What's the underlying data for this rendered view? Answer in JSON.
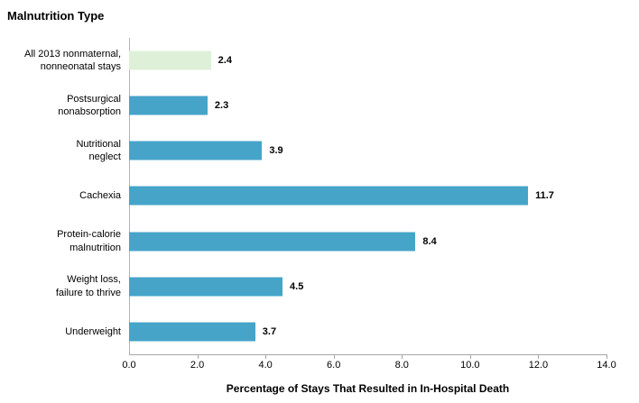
{
  "title": "Malnutrition Type",
  "colors": {
    "bar": "#46a4c8",
    "highlight_bar": "#dff0d8",
    "axis_line": "#a6a6a6",
    "text": "#000000"
  },
  "xaxis": {
    "title": "Percentage of Stays That Resulted in In-Hospital Death",
    "tick_labels": [
      "0.0",
      "2.0",
      "4.0",
      "6.0",
      "8.0",
      "10.0",
      "12.0",
      "14.0"
    ],
    "min": 0,
    "max": 14
  },
  "chart_data": {
    "type": "bar",
    "orientation": "horizontal",
    "title": "Malnutrition Type",
    "xlabel": "Percentage of Stays That Resulted in In-Hospital Death",
    "xlim": [
      0,
      14
    ],
    "grid": false,
    "legend": false,
    "categories": [
      "All 2013 nonmaternal, nonneonatal stays",
      "Postsurgical nonabsorption",
      "Nutritional neglect",
      "Cachexia",
      "Protein-calorie malnutrition",
      "Weight loss, failure to thrive",
      "Underweight"
    ],
    "values": [
      2.4,
      2.3,
      3.9,
      11.7,
      8.4,
      4.5,
      3.7
    ],
    "rows": [
      {
        "lines": [
          "All 2013 nonmaternal,",
          "nonneonatal stays"
        ],
        "value": 2.4,
        "value_label": "2.4",
        "highlight": true
      },
      {
        "lines": [
          "Postsurgical",
          "nonabsorption"
        ],
        "value": 2.3,
        "value_label": "2.3",
        "highlight": false
      },
      {
        "lines": [
          "Nutritional",
          "neglect"
        ],
        "value": 3.9,
        "value_label": "3.9",
        "highlight": false
      },
      {
        "lines": [
          "Cachexia"
        ],
        "value": 11.7,
        "value_label": "11.7",
        "highlight": false
      },
      {
        "lines": [
          "Protein-calorie",
          "malnutrition"
        ],
        "value": 8.4,
        "value_label": "8.4",
        "highlight": false
      },
      {
        "lines": [
          "Weight loss,",
          "failure to thrive"
        ],
        "value": 4.5,
        "value_label": "4.5",
        "highlight": false
      },
      {
        "lines": [
          "Underweight"
        ],
        "value": 3.7,
        "value_label": "3.7",
        "highlight": false
      }
    ]
  }
}
